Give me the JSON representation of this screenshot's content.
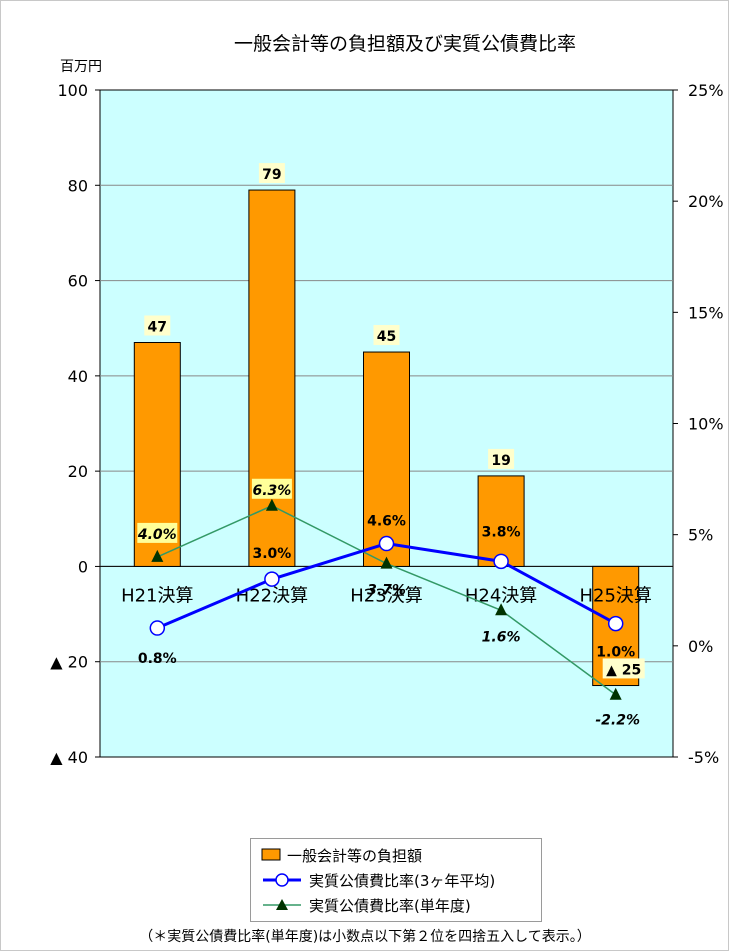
{
  "chart_data": {
    "type": "bar",
    "title": "一般会計等の負担額及び実質公債費比率",
    "y_unit_label": "百万円",
    "categories": [
      "H21決算",
      "H22決算",
      "H23決算",
      "H24決算",
      "H25決算"
    ],
    "ylim": [
      -40,
      100
    ],
    "yticks": [
      100,
      80,
      60,
      40,
      20,
      0,
      -20,
      -40
    ],
    "ytick_labels": [
      "100",
      "80",
      "60",
      "40",
      "20",
      "0",
      "▲ 20",
      "▲ 40"
    ],
    "y2lim": [
      -5,
      25
    ],
    "y2ticks": [
      25,
      20,
      15,
      10,
      5,
      0,
      -5
    ],
    "y2tick_labels": [
      "25%",
      "20%",
      "15%",
      "10%",
      "5%",
      "0%",
      "-5%"
    ],
    "grid": true,
    "series": [
      {
        "name": "一般会計等の負担額",
        "type": "bar",
        "axis": "left",
        "values": [
          47,
          79,
          45,
          19,
          -25
        ],
        "labels": [
          "47",
          "79",
          "45",
          "19",
          "▲ 25"
        ],
        "color": "#ff9900"
      },
      {
        "name": "実質公債費比率(3ヶ年平均)",
        "type": "line",
        "axis": "right",
        "values": [
          0.8,
          3.0,
          4.6,
          3.8,
          1.0
        ],
        "labels": [
          "0.8%",
          "3.0%",
          "4.6%",
          "3.8%",
          "1.0%"
        ],
        "color": "#0000ff"
      },
      {
        "name": "実質公債費比率(単年度)",
        "type": "line",
        "axis": "right",
        "values": [
          4.0,
          6.3,
          3.7,
          1.6,
          -2.2
        ],
        "labels": [
          "4.0%",
          "6.3%",
          "3.7%",
          "1.6%",
          "-2.2%"
        ],
        "color": "#339966"
      }
    ],
    "legend_position": "bottom",
    "footnote": "（＊実質公債費比率(単年度)は小数点以下第２位を四捨五入して表示。）"
  },
  "colors": {
    "plot_background": "#ccffff",
    "gridline": "#888888",
    "bar": "#ff9900",
    "avg_line": "#0000ff",
    "single_line": "#339966",
    "single_marker": "#003300"
  }
}
